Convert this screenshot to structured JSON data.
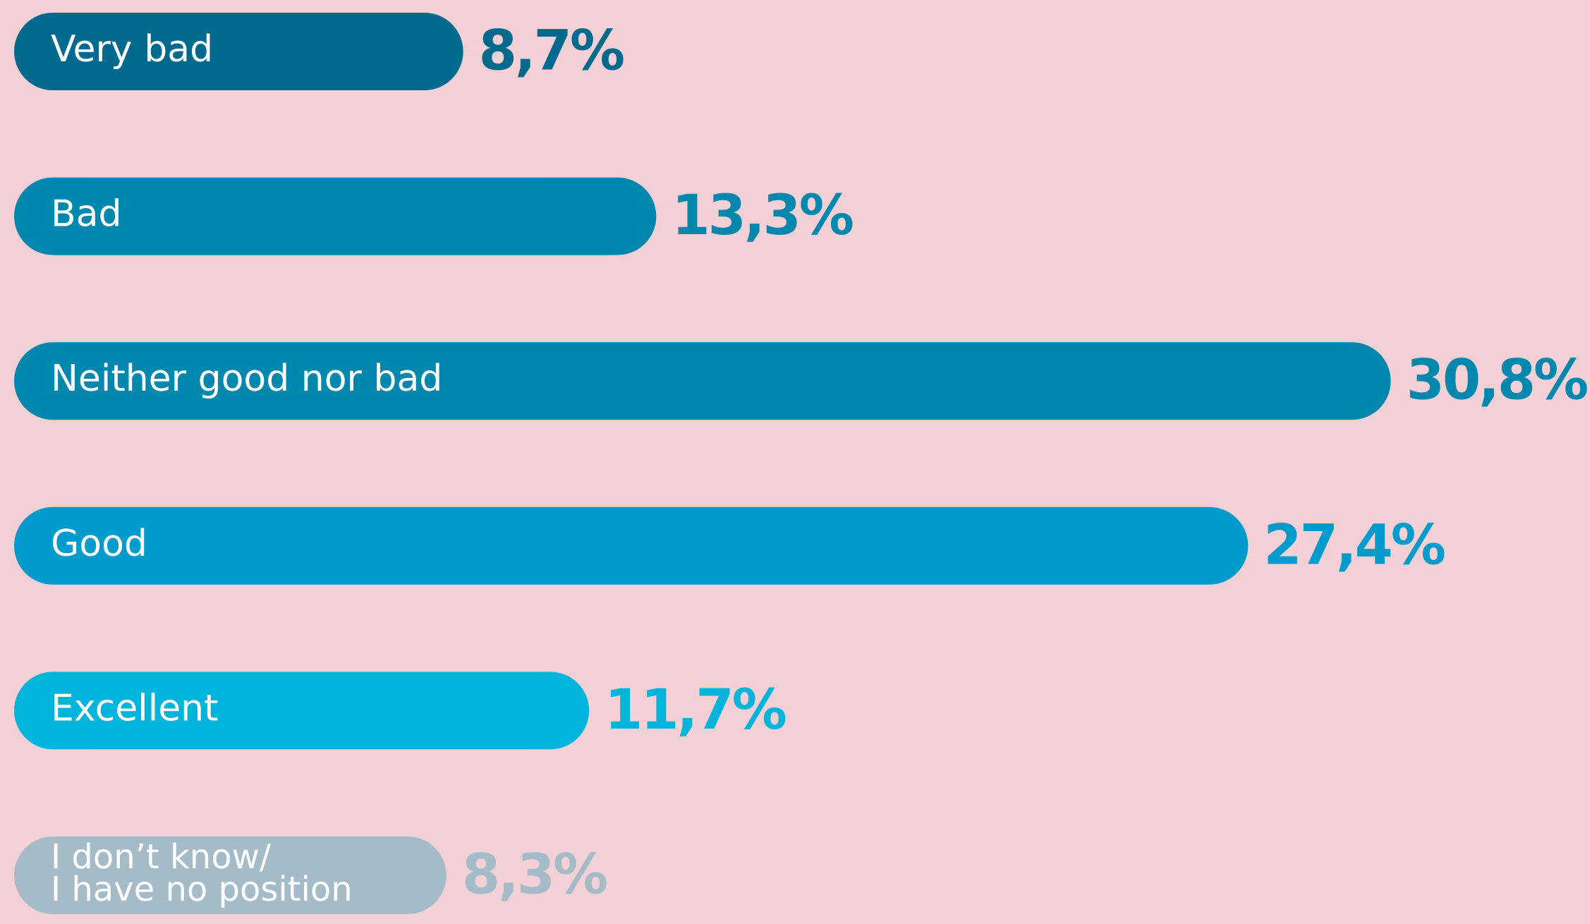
{
  "chart_data": {
    "type": "hbar",
    "categories": [
      "Very bad",
      "Bad",
      "Neither good nor bad",
      "Good",
      "Excellent",
      "I don’t know/\nI have no position"
    ],
    "values": [
      8.7,
      13.3,
      30.8,
      27.4,
      11.7,
      8.3
    ],
    "value_labels": [
      "8,7%",
      "13,3%",
      "30,8%",
      "27,4%",
      "11,7%",
      "8,3%"
    ],
    "colors": [
      "#006a8e",
      "#0087ae",
      "#0087ae",
      "#009bcd",
      "#00b4dc",
      "#a5bcc8"
    ]
  }
}
